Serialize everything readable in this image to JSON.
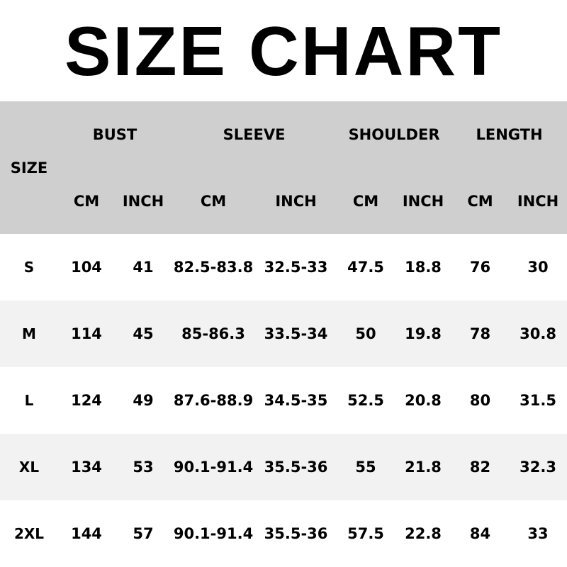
{
  "title": "SIZE CHART",
  "header": {
    "size": "SIZE",
    "groups": [
      "BUST",
      "SLEEVE",
      "SHOULDER",
      "LENGTH"
    ],
    "units": [
      "CM",
      "INCH",
      "CM",
      "INCH",
      "CM",
      "INCH",
      "CM",
      "INCH"
    ]
  },
  "colors": {
    "header_bg": "#d0cfcf",
    "stripe_bg": "#f2f2f2",
    "text": "#000000"
  },
  "rows": [
    [
      "S",
      "104",
      "41",
      "82.5-83.8",
      "32.5-33",
      "47.5",
      "18.8",
      "76",
      "30"
    ],
    [
      "M",
      "114",
      "45",
      "85-86.3",
      "33.5-34",
      "50",
      "19.8",
      "78",
      "30.8"
    ],
    [
      "L",
      "124",
      "49",
      "87.6-88.9",
      "34.5-35",
      "52.5",
      "20.8",
      "80",
      "31.5"
    ],
    [
      "XL",
      "134",
      "53",
      "90.1-91.4",
      "35.5-36",
      "55",
      "21.8",
      "82",
      "32.3"
    ],
    [
      "2XL",
      "144",
      "57",
      "90.1-91.4",
      "35.5-36",
      "57.5",
      "22.8",
      "84",
      "33"
    ]
  ]
}
